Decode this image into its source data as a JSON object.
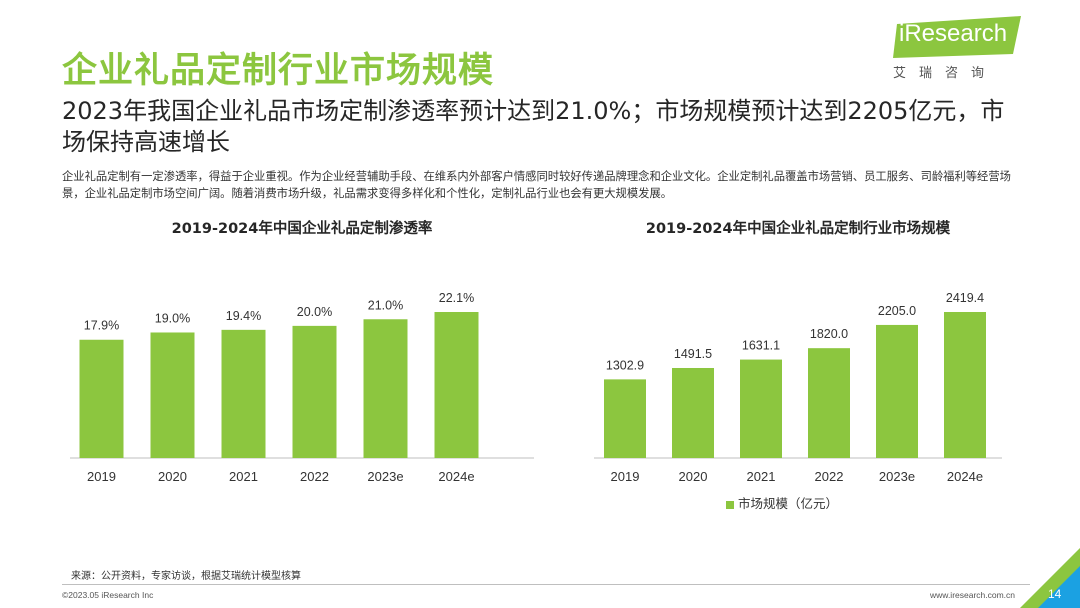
{
  "header": {
    "title": "企业礼品定制行业市场规模",
    "subtitle": "2023年我国企业礼品市场定制渗透率预计达到21.0%；市场规模预计达到2205亿元，市场保持高速增长",
    "description": "企业礼品定制有一定渗透率，得益于企业重视。作为企业经营辅助手段、在维系内外部客户情感同时较好传递品牌理念和企业文化。企业定制礼品覆盖市场营销、员工服务、司龄福利等经营场景，企业礼品定制市场空间广阔。随着消费市场升级，礼品需求变得多样化和个性化，定制礼品行业也会有更大规模发展。"
  },
  "logo": {
    "text_en": "iResearch",
    "text_cn": "艾瑞咨询"
  },
  "chart_data": [
    {
      "type": "bar",
      "title": "2019-2024年中国企业礼品定制渗透率",
      "categories": [
        "2019",
        "2020",
        "2021",
        "2022",
        "2023e",
        "2024e"
      ],
      "values": [
        17.9,
        19.0,
        19.4,
        20.0,
        21.0,
        22.1
      ],
      "labels": [
        "17.9%",
        "19.0%",
        "19.4%",
        "20.0%",
        "21.0%",
        "22.1%"
      ],
      "unit": "%",
      "ylim": [
        0,
        22.1
      ],
      "color": "#8cc63f"
    },
    {
      "type": "bar",
      "title": "2019-2024年中国企业礼品定制行业市场规模",
      "categories": [
        "2019",
        "2020",
        "2021",
        "2022",
        "2023e",
        "2024e"
      ],
      "values": [
        1302.9,
        1491.5,
        1631.1,
        1820.0,
        2205.0,
        2419.4
      ],
      "labels": [
        "1302.9",
        "1491.5",
        "1631.1",
        "1820.0",
        "2205.0",
        "2419.4"
      ],
      "legend": "市场规模（亿元）",
      "ylim": [
        0,
        2419.4
      ],
      "color": "#8cc63f"
    }
  ],
  "footer": {
    "source": "来源：公开资料，专家访谈，根据艾瑞统计模型核算",
    "copyright": "©2023.05 iResearch Inc",
    "website": "www.iresearch.com.cn",
    "page": "14"
  },
  "colors": {
    "accent": "#8cc63f",
    "blue": "#1ba1e2"
  }
}
